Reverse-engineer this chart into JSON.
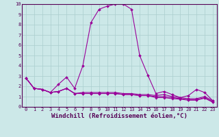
{
  "xlabel": "Windchill (Refroidissement éolien,°C)",
  "bg_color": "#cce8e8",
  "grid_color": "#aacece",
  "line_color": "#990099",
  "xlim": [
    -0.5,
    23.5
  ],
  "ylim": [
    0,
    10
  ],
  "xticks": [
    0,
    1,
    2,
    3,
    4,
    5,
    6,
    7,
    8,
    9,
    10,
    11,
    12,
    13,
    14,
    15,
    16,
    17,
    18,
    19,
    20,
    21,
    22,
    23
  ],
  "yticks": [
    0,
    1,
    2,
    3,
    4,
    5,
    6,
    7,
    8,
    9,
    10
  ],
  "series1": [
    2.8,
    1.8,
    1.7,
    1.4,
    2.2,
    2.9,
    1.8,
    4.0,
    8.2,
    9.5,
    9.8,
    10.0,
    10.0,
    9.5,
    5.0,
    3.1,
    1.3,
    1.5,
    1.2,
    0.9,
    1.1,
    1.7,
    1.4,
    0.6
  ],
  "series2": [
    2.8,
    1.8,
    1.7,
    1.4,
    1.5,
    1.8,
    1.3,
    1.4,
    1.4,
    1.4,
    1.4,
    1.4,
    1.3,
    1.3,
    1.2,
    1.2,
    1.1,
    1.2,
    1.0,
    0.9,
    0.8,
    0.8,
    1.0,
    0.6
  ],
  "series3": [
    2.8,
    1.8,
    1.7,
    1.4,
    1.5,
    1.8,
    1.3,
    1.3,
    1.3,
    1.3,
    1.3,
    1.3,
    1.2,
    1.2,
    1.1,
    1.1,
    1.0,
    1.0,
    0.9,
    0.8,
    0.7,
    0.7,
    0.9,
    0.5
  ],
  "series4": [
    2.8,
    1.8,
    1.7,
    1.4,
    1.5,
    1.8,
    1.3,
    1.3,
    1.3,
    1.3,
    1.3,
    1.3,
    1.2,
    1.2,
    1.1,
    1.1,
    0.9,
    0.9,
    0.8,
    0.75,
    0.65,
    0.65,
    0.85,
    0.45
  ],
  "tick_color": "#550055",
  "spine_color": "#550055",
  "xlabel_fontsize": 6.5,
  "tick_fontsize": 5.0
}
